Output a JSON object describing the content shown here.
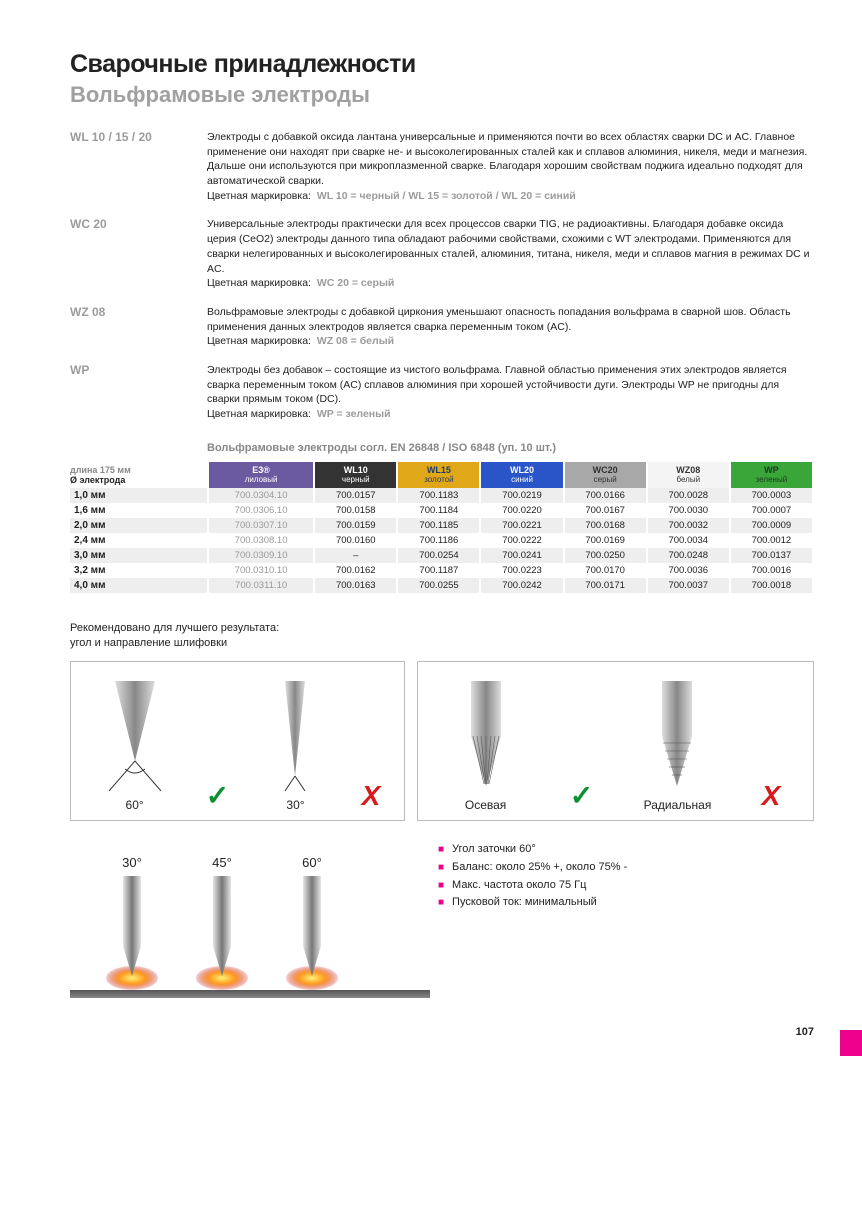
{
  "title": "Сварочные принадлежности",
  "subtitle": "Вольфрамовые электроды",
  "sections": [
    {
      "label": "WL 10 / 15 / 20",
      "text": "Электроды с добавкой оксида лантана универсальные и применяются почти во всех областях сварки DC и AC. Главное применение они находят при сварке не- и высоколегированных сталей как и сплавов алюминия, никеля, меди и магнезия. Дальше они используются при микроплазменной сварке. Благодаря хорошим свойствам поджига идеально подходят для автоматической сварки.",
      "color_prefix": "Цветная маркировка:",
      "color_value": "WL 10 = черный / WL 15 = золотой / WL 20 = синий"
    },
    {
      "label": "WC 20",
      "text": "Универсальные электроды практически для всех процессов сварки TIG, не радиоактивны. Благодаря добавке оксида церия (CeO2) электроды данного типа обладают рабочими свойствами, схожими с WT электродами. Применяются для сварки нелегированных и высоколегированных сталей, алюминия, титана, никеля, меди и сплавов магния в режимах DC и AC.",
      "color_prefix": "Цветная маркировка:",
      "color_value": "WC 20 = серый"
    },
    {
      "label": "WZ 08",
      "text": "Вольфрамовые электроды с добавкой циркония уменьшают опасность попадания вольфрама в сварной шов. Область применения данных электродов является сварка переменным током (AC).",
      "color_prefix": "Цветная маркировка:",
      "color_value": "WZ 08 = белый"
    },
    {
      "label": "WP",
      "text": "Электроды без добавок – состоящие из чистого вольфрама. Главной областью применения этих электродов является сварка переменным током (AC) сплавов алюминия при хорошей устойчивости дуги. Электроды WP не пригодны для сварки прямым током (DC).",
      "color_prefix": "Цветная маркировка:",
      "color_value": "WP = зеленый"
    }
  ],
  "table_title": "Вольфрамовые электроды согл. EN 26848 / ISO 6848 (уп. 10 шт.)",
  "left_header": {
    "line1": "длина 175 мм",
    "line2": "Ø электрода"
  },
  "columns": [
    {
      "name": "E3®",
      "sub": "лиловый",
      "bg": "#6b5aa0",
      "fg": "#ffffff"
    },
    {
      "name": "WL10",
      "sub": "черный",
      "bg": "#333333",
      "fg": "#ffffff"
    },
    {
      "name": "WL15",
      "sub": "золотой",
      "bg": "#e0a818",
      "fg": "#1d3a6e"
    },
    {
      "name": "WL20",
      "sub": "синий",
      "bg": "#2a55c8",
      "fg": "#ffffff"
    },
    {
      "name": "WC20",
      "sub": "серый",
      "bg": "#a8a8a8",
      "fg": "#333333"
    },
    {
      "name": "WZ08",
      "sub": "белый",
      "bg": "#f4f4f4",
      "fg": "#333333"
    },
    {
      "name": "WP",
      "sub": "зеленый",
      "bg": "#3aa63a",
      "fg": "#1d3a1d"
    }
  ],
  "rows": [
    {
      "size": "1,0 мм",
      "cells": [
        "700.0304.10",
        "700.0157",
        "700.1183",
        "700.0219",
        "700.0166",
        "700.0028",
        "700.0003"
      ]
    },
    {
      "size": "1,6 мм",
      "cells": [
        "700.0306.10",
        "700.0158",
        "700.1184",
        "700.0220",
        "700.0167",
        "700.0030",
        "700.0007"
      ]
    },
    {
      "size": "2,0 мм",
      "cells": [
        "700.0307.10",
        "700.0159",
        "700.1185",
        "700.0221",
        "700.0168",
        "700.0032",
        "700.0009"
      ]
    },
    {
      "size": "2,4 мм",
      "cells": [
        "700.0308.10",
        "700.0160",
        "700.1186",
        "700.0222",
        "700.0169",
        "700.0034",
        "700.0012"
      ]
    },
    {
      "size": "3,0 мм",
      "cells": [
        "700.0309.10",
        "–",
        "700.0254",
        "700.0241",
        "700.0250",
        "700.0248",
        "700.0137"
      ]
    },
    {
      "size": "3,2 мм",
      "cells": [
        "700.0310.10",
        "700.0162",
        "700.1187",
        "700.0223",
        "700.0170",
        "700.0036",
        "700.0016"
      ]
    },
    {
      "size": "4,0 мм",
      "cells": [
        "700.0311.10",
        "700.0163",
        "700.0255",
        "700.0242",
        "700.0171",
        "700.0037",
        "700.0018"
      ]
    }
  ],
  "reco_line1": "Рекомендовано для лучшего результата:",
  "reco_line2": "угол и направление шлифовки",
  "diag1": {
    "good_angle": "60°",
    "bad_angle": "30°"
  },
  "diag2": {
    "good_label": "Осевая",
    "bad_label": "Радиальная"
  },
  "angles": [
    "30°",
    "45°",
    "60°"
  ],
  "bullets": [
    "Угол заточки 60°",
    "Баланс: около 25% +, около 75% -",
    "Макс. частота около 75 Гц",
    "Пусковой ток: минимальный"
  ],
  "page_number": "107",
  "accent": "#ec008c",
  "check_color": "#0a9030",
  "cross_color": "#d81c1c"
}
